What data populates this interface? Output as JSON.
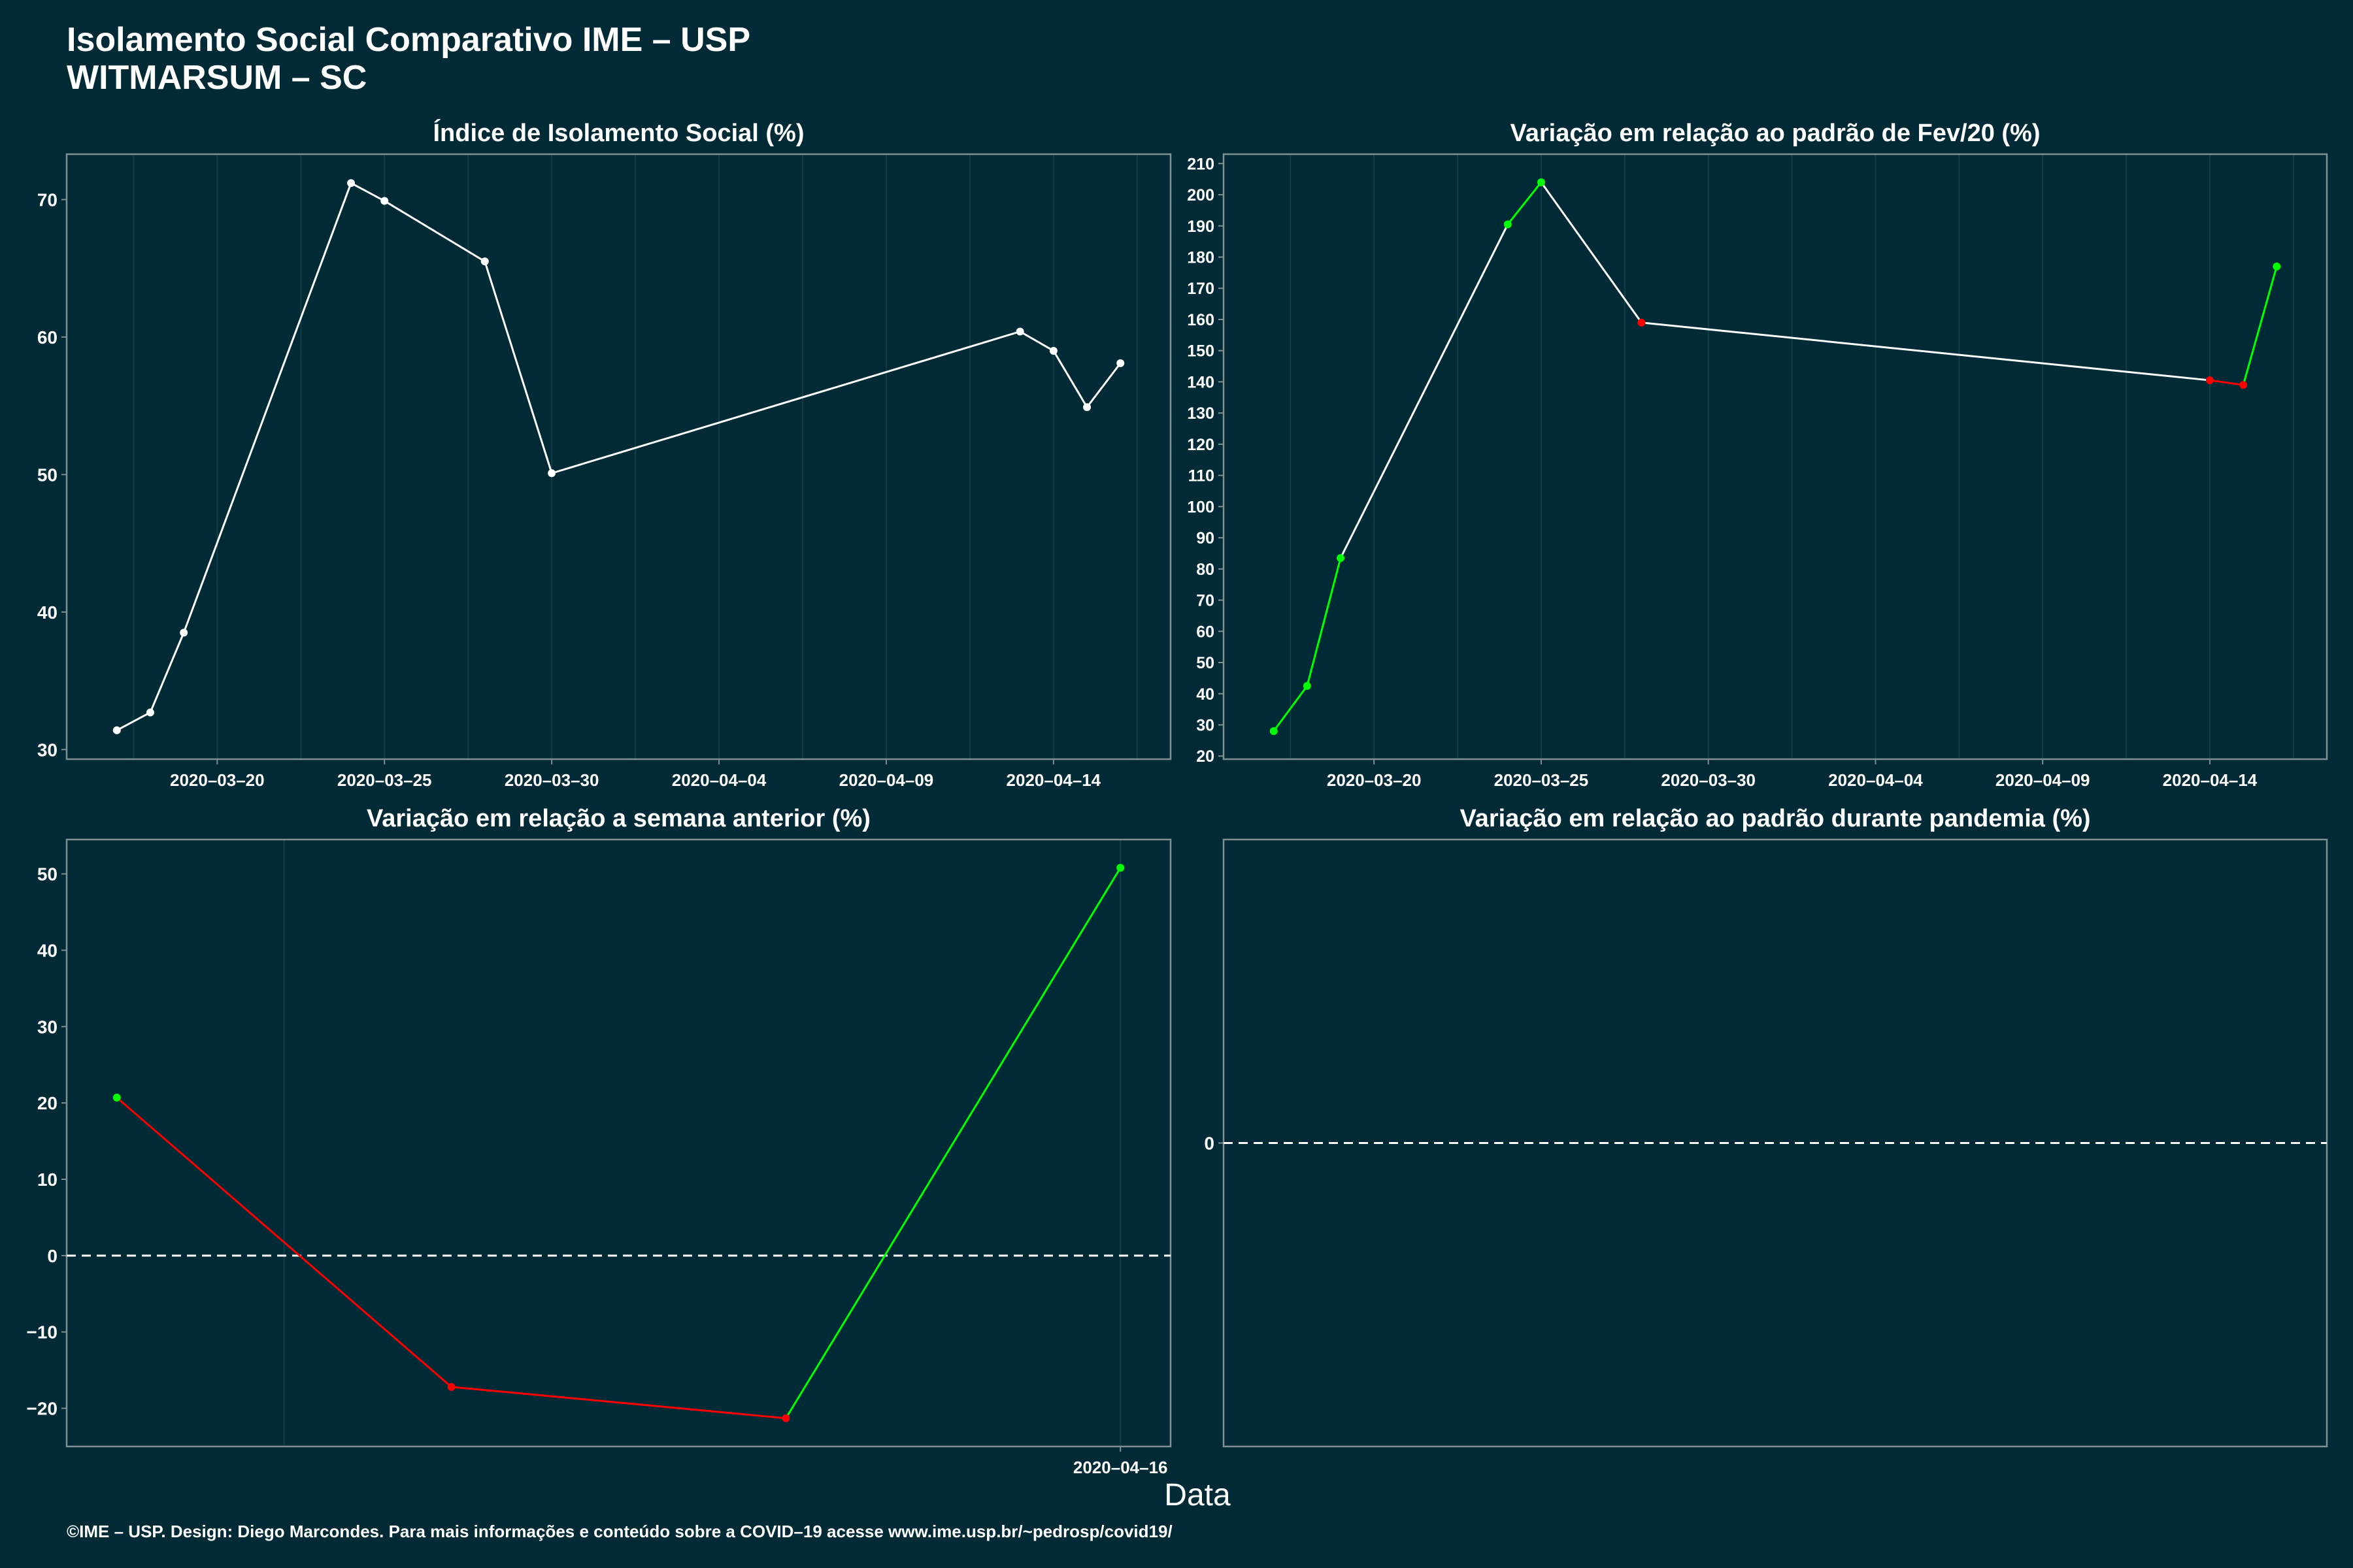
{
  "header": {
    "title": "Isolamento Social Comparativo IME – USP",
    "subtitle": "WITMARSUM – SC"
  },
  "xlabel": "Data",
  "footer": "©IME – USP. Design: Diego Marcondes. Para mais informações e conteúdo sobre a COVID–19 acesse www.ime.usp.br/~pedrosp/covid19/",
  "colors": {
    "background": "#002b36",
    "white": "#ffffff",
    "positive": "#00ff00",
    "negative": "#ff0000",
    "grid": "#0f3d48",
    "border": "#7f8f93"
  },
  "chart_data": [
    {
      "id": "isolation",
      "type": "line",
      "title": "Índice de Isolamento Social (%)",
      "x": [
        "2020-03-17",
        "2020-03-18",
        "2020-03-19",
        "2020-03-24",
        "2020-03-25",
        "2020-03-28",
        "2020-03-30",
        "2020-04-13",
        "2020-04-14",
        "2020-04-15",
        "2020-04-16"
      ],
      "y": [
        31.4,
        32.7,
        38.5,
        71.2,
        69.9,
        65.5,
        50.1,
        60.4,
        59.0,
        54.9,
        58.1
      ],
      "xlim": [
        "2020-03-15.5",
        "2020-04-17.5"
      ],
      "ylim": [
        29.3,
        73.3
      ],
      "yticks": [
        30,
        40,
        50,
        60,
        70
      ],
      "xticks": [
        "2020-03-20",
        "2020-03-25",
        "2020-03-30",
        "2020-04-04",
        "2020-04-09",
        "2020-04-14"
      ],
      "colored": false
    },
    {
      "id": "vs-feb",
      "type": "line",
      "title": "Variação em relação ao padrão de Fev/20 (%)",
      "x": [
        "2020-03-17",
        "2020-03-18",
        "2020-03-19",
        "2020-03-24",
        "2020-03-25",
        "2020-03-28",
        "2020-04-14",
        "2020-04-15",
        "2020-04-16"
      ],
      "y": [
        28.0,
        42.5,
        83.5,
        190.5,
        204.0,
        159.0,
        140.5,
        139.0,
        177.0
      ],
      "xlim": [
        "2020-03-15.5",
        "2020-04-17.5"
      ],
      "ylim": [
        19.0,
        213.0
      ],
      "yticks": [
        20,
        30,
        40,
        50,
        60,
        70,
        80,
        90,
        100,
        110,
        120,
        130,
        140,
        150,
        160,
        170,
        180,
        190,
        200,
        210
      ],
      "xticks": [
        "2020-03-20",
        "2020-03-25",
        "2020-03-30",
        "2020-04-04",
        "2020-04-09",
        "2020-04-14"
      ],
      "colored": true
    },
    {
      "id": "vs-week",
      "type": "line",
      "title": "Variação em relação a semana anterior (%)",
      "x": [
        "2020-04-13",
        "2020-04-14",
        "2020-04-15",
        "2020-04-16"
      ],
      "y": [
        20.7,
        -17.2,
        -21.3,
        50.8
      ],
      "xlim": [
        "2020-04-12.85",
        "2020-04-16.15"
      ],
      "ylim": [
        -25.0,
        54.5
      ],
      "yticks": [
        -20,
        -10,
        0,
        10,
        20,
        30,
        40,
        50
      ],
      "xticks": [
        "2020-04-16"
      ],
      "colored": true,
      "zero_line": true
    },
    {
      "id": "vs-pandemic",
      "type": "line",
      "title": "Variação em relação ao padrão durante pandemia (%)",
      "x": [],
      "y": [],
      "ylim": [
        -1,
        1
      ],
      "yticks": [
        0
      ],
      "xticks": [],
      "colored": true,
      "zero_line": true
    }
  ]
}
